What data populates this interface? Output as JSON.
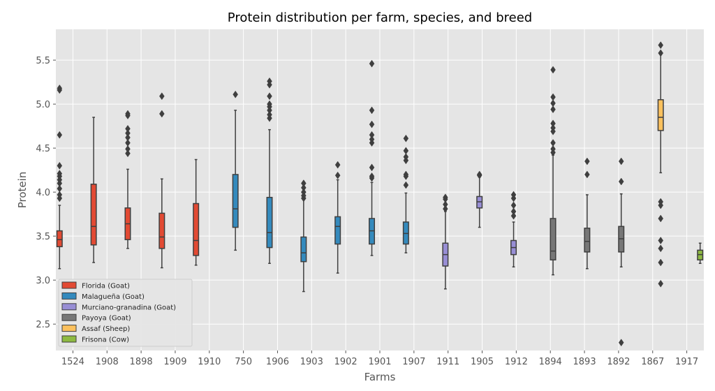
{
  "chart_data": {
    "type": "boxplot",
    "title": "Protein distribution per farm, species, and breed",
    "xlabel": "Farms",
    "ylabel": "Protein",
    "ylim": [
      2.2,
      5.85
    ],
    "yticks": [
      2.5,
      3.0,
      3.5,
      4.0,
      4.5,
      5.0,
      5.5
    ],
    "ytick_labels": [
      "2.5",
      "3.0",
      "3.5",
      "4.0",
      "4.5",
      "5.0",
      "5.5"
    ],
    "categories": [
      "1524",
      "1908",
      "1898",
      "1909",
      "1910",
      "750",
      "1906",
      "1903",
      "1902",
      "1901",
      "1907",
      "1911",
      "1905",
      "1912",
      "1894",
      "1893",
      "1892",
      "1867",
      "1917"
    ],
    "grid": true,
    "legend_position": "lower-left",
    "legend": [
      {
        "label": "Florida (Goat)",
        "color": "#E24A33"
      },
      {
        "label": "Malagueña (Goat)",
        "color": "#348ABD"
      },
      {
        "label": "Murciano-granadina (Goat)",
        "color": "#988ED5"
      },
      {
        "label": "Payoya (Goat)",
        "color": "#777777"
      },
      {
        "label": "Assaf (Sheep)",
        "color": "#FBC15E"
      },
      {
        "label": "Frisona (Cow)",
        "color": "#8EBA42"
      }
    ],
    "boxes": [
      {
        "category": "1524",
        "series": 0,
        "whislo": 3.13,
        "q1": 3.38,
        "med": 3.46,
        "q3": 3.56,
        "whishi": 3.85,
        "fliers": [
          3.93,
          3.97,
          4.04,
          4.1,
          4.14,
          4.18,
          4.21,
          4.3,
          4.65,
          5.16,
          5.18
        ]
      },
      {
        "category": "1908",
        "series": 0,
        "whislo": 3.2,
        "q1": 3.4,
        "med": 3.61,
        "q3": 4.09,
        "whishi": 4.85,
        "fliers": []
      },
      {
        "category": "1898",
        "series": 0,
        "whislo": 3.36,
        "q1": 3.46,
        "med": 3.64,
        "q3": 3.82,
        "whishi": 4.26,
        "fliers": [
          4.44,
          4.49,
          4.56,
          4.62,
          4.67,
          4.72,
          4.87,
          4.89
        ]
      },
      {
        "category": "1909",
        "series": 0,
        "whislo": 3.14,
        "q1": 3.36,
        "med": 3.49,
        "q3": 3.76,
        "whishi": 4.15,
        "fliers": [
          4.89,
          5.09
        ]
      },
      {
        "category": "1910",
        "series": 0,
        "whislo": 3.17,
        "q1": 3.28,
        "med": 3.45,
        "q3": 3.87,
        "whishi": 4.37,
        "fliers": []
      },
      {
        "category": "750",
        "series": 1,
        "whislo": 3.34,
        "q1": 3.6,
        "med": 3.81,
        "q3": 4.2,
        "whishi": 4.93,
        "fliers": [
          5.11
        ]
      },
      {
        "category": "1906",
        "series": 1,
        "whislo": 3.19,
        "q1": 3.37,
        "med": 3.54,
        "q3": 3.94,
        "whishi": 4.71,
        "fliers": [
          4.84,
          4.88,
          4.93,
          4.97,
          5.0,
          5.09,
          5.22,
          5.26
        ]
      },
      {
        "category": "1903",
        "series": 1,
        "whislo": 2.87,
        "q1": 3.21,
        "med": 3.31,
        "q3": 3.49,
        "whishi": 3.92,
        "fliers": [
          3.93,
          3.96,
          4.0,
          4.05,
          4.1
        ]
      },
      {
        "category": "1902",
        "series": 1,
        "whislo": 3.08,
        "q1": 3.41,
        "med": 3.61,
        "q3": 3.72,
        "whishi": 4.14,
        "fliers": [
          4.19,
          4.31
        ]
      },
      {
        "category": "1901",
        "series": 1,
        "whislo": 3.28,
        "q1": 3.41,
        "med": 3.56,
        "q3": 3.7,
        "whishi": 4.11,
        "fliers": [
          4.16,
          4.18,
          4.28,
          4.56,
          4.6,
          4.65,
          4.77,
          4.93,
          5.46
        ]
      },
      {
        "category": "1907",
        "series": 1,
        "whislo": 3.31,
        "q1": 3.41,
        "med": 3.53,
        "q3": 3.66,
        "whishi": 3.99,
        "fliers": [
          4.08,
          4.18,
          4.2,
          4.36,
          4.4,
          4.47,
          4.61
        ]
      },
      {
        "category": "1911",
        "series": 2,
        "whislo": 2.9,
        "q1": 3.16,
        "med": 3.29,
        "q3": 3.42,
        "whishi": 3.78,
        "fliers": [
          3.81,
          3.86,
          3.92,
          3.94
        ]
      },
      {
        "category": "1905",
        "series": 2,
        "whislo": 3.6,
        "q1": 3.82,
        "med": 3.89,
        "q3": 3.95,
        "whishi": 4.17,
        "fliers": [
          4.19,
          4.2
        ]
      },
      {
        "category": "1912",
        "series": 2,
        "whislo": 3.15,
        "q1": 3.29,
        "med": 3.37,
        "q3": 3.45,
        "whishi": 3.66,
        "fliers": [
          3.73,
          3.78,
          3.85,
          3.93,
          3.97
        ]
      },
      {
        "category": "1894",
        "series": 3,
        "whislo": 3.06,
        "q1": 3.23,
        "med": 3.33,
        "q3": 3.7,
        "whishi": 4.42,
        "fliers": [
          4.45,
          4.49,
          4.56,
          4.69,
          4.73,
          4.78,
          4.94,
          5.01,
          5.08,
          5.39
        ]
      },
      {
        "category": "1893",
        "series": 3,
        "whislo": 3.13,
        "q1": 3.32,
        "med": 3.44,
        "q3": 3.59,
        "whishi": 3.97,
        "fliers": [
          4.2,
          4.35
        ]
      },
      {
        "category": "1892",
        "series": 3,
        "whislo": 3.15,
        "q1": 3.32,
        "med": 3.47,
        "q3": 3.61,
        "whishi": 3.98,
        "fliers": [
          2.29,
          4.12,
          4.35
        ]
      },
      {
        "category": "1867",
        "series": 4,
        "whislo": 4.22,
        "q1": 4.7,
        "med": 4.85,
        "q3": 5.05,
        "whishi": 5.57,
        "fliers": [
          2.96,
          3.2,
          3.36,
          3.45,
          3.7,
          3.85,
          3.89,
          5.58,
          5.67
        ]
      },
      {
        "category": "1917",
        "series": 5,
        "whislo": 3.19,
        "q1": 3.23,
        "med": 3.29,
        "q3": 3.34,
        "whishi": 3.42,
        "fliers": []
      }
    ]
  }
}
